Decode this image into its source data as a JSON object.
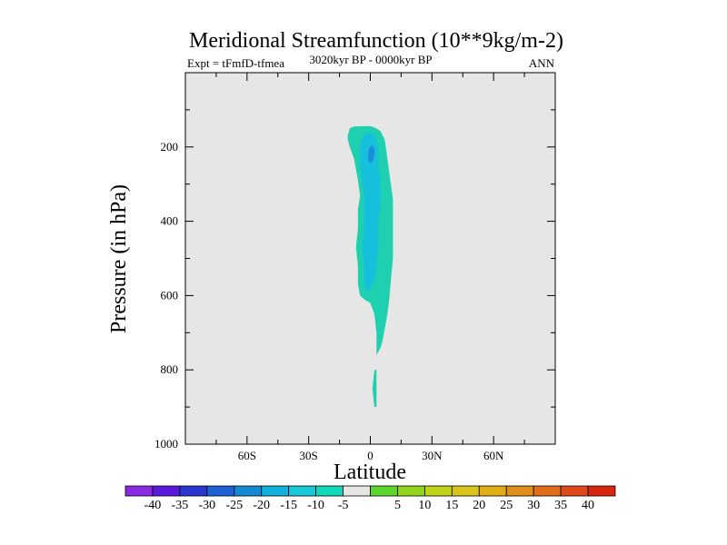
{
  "chart_data": {
    "type": "contour",
    "title": "Meridional Streamfunction (10**9kg/m-2)",
    "subtitle": "3020kyr BP - 0000kyr BP",
    "left_label": "Expt = tFmfD-tfmea",
    "right_label": "ANN",
    "xlabel": "Latitude",
    "ylabel": "Pressure (in hPa)",
    "xlim": [
      -90,
      90
    ],
    "ylim": [
      1000,
      0
    ],
    "x_ticks": [
      {
        "value": -60,
        "label": "60S"
      },
      {
        "value": -30,
        "label": "30S"
      },
      {
        "value": 0,
        "label": "0"
      },
      {
        "value": 30,
        "label": "30N"
      },
      {
        "value": 60,
        "label": "60N"
      }
    ],
    "y_ticks": [
      {
        "value": 200,
        "label": "200"
      },
      {
        "value": 400,
        "label": "400"
      },
      {
        "value": 600,
        "label": "600"
      },
      {
        "value": 800,
        "label": "800"
      },
      {
        "value": 1000,
        "label": "1000"
      }
    ],
    "background_color": "#e6e6e6",
    "colorbar": {
      "colors": [
        "#8a2be2",
        "#5a1adc",
        "#2b35cf",
        "#1f61d6",
        "#148ad6",
        "#0fb0dc",
        "#16c8d8",
        "#10d8b8",
        "#e6e6e6",
        "#5cd62b",
        "#92d41c",
        "#bfd418",
        "#d9c51a",
        "#e0ad14",
        "#e08f18",
        "#e06d1a",
        "#e04a1a",
        "#d8260f"
      ],
      "labels": [
        "-40",
        "-35",
        "-30",
        "-25",
        "-20",
        "-15",
        "-10",
        "-5",
        "5",
        "10",
        "15",
        "20",
        "25",
        "30",
        "35",
        "40"
      ]
    },
    "regions": [
      {
        "color": "#1fd0b0",
        "points": [
          [
            -11,
            170
          ],
          [
            -10,
            150
          ],
          [
            -8,
            145
          ],
          [
            -3,
            144
          ],
          [
            0,
            144
          ],
          [
            3,
            150
          ],
          [
            5,
            158
          ],
          [
            7,
            180
          ],
          [
            8,
            220
          ],
          [
            9,
            260
          ],
          [
            10,
            300
          ],
          [
            11,
            340
          ],
          [
            11,
            400
          ],
          [
            11,
            450
          ],
          [
            11,
            500
          ],
          [
            10,
            560
          ],
          [
            9,
            620
          ],
          [
            8,
            660
          ],
          [
            7,
            690
          ],
          [
            6,
            720
          ],
          [
            5,
            740
          ],
          [
            3,
            760
          ],
          [
            3,
            700
          ],
          [
            2,
            650
          ],
          [
            0,
            620
          ],
          [
            -3,
            610
          ],
          [
            -5,
            600
          ],
          [
            -6,
            570
          ],
          [
            -6,
            520
          ],
          [
            -7,
            470
          ],
          [
            -6,
            420
          ],
          [
            -6,
            370
          ],
          [
            -5,
            330
          ],
          [
            -6,
            290
          ],
          [
            -7,
            260
          ],
          [
            -8,
            230
          ],
          [
            -10,
            200
          ],
          [
            -11,
            180
          ]
        ]
      },
      {
        "color": "#1fd0b0",
        "points": [
          [
            2,
            800
          ],
          [
            3,
            800
          ],
          [
            3,
            850
          ],
          [
            3,
            900
          ],
          [
            2,
            900
          ],
          [
            1,
            850
          ]
        ]
      },
      {
        "color": "#16c0dc",
        "points": [
          [
            -5,
            190
          ],
          [
            -3,
            168
          ],
          [
            0,
            160
          ],
          [
            2,
            165
          ],
          [
            3,
            180
          ],
          [
            4,
            210
          ],
          [
            4,
            250
          ],
          [
            5,
            300
          ],
          [
            5,
            340
          ],
          [
            4,
            400
          ],
          [
            4,
            460
          ],
          [
            3,
            520
          ],
          [
            2,
            560
          ],
          [
            0,
            580
          ],
          [
            -2,
            590
          ],
          [
            -3,
            570
          ],
          [
            -3,
            520
          ],
          [
            -4,
            470
          ],
          [
            -3,
            420
          ],
          [
            -3,
            370
          ],
          [
            -3,
            330
          ],
          [
            -4,
            290
          ],
          [
            -5,
            250
          ],
          [
            -5,
            220
          ]
        ]
      },
      {
        "color": "#1b8fd9",
        "points": [
          [
            -1,
            210
          ],
          [
            0,
            198
          ],
          [
            1,
            195
          ],
          [
            2,
            205
          ],
          [
            2,
            225
          ],
          [
            1,
            240
          ],
          [
            0,
            244
          ],
          [
            -1,
            235
          ],
          [
            -1,
            222
          ]
        ]
      }
    ]
  }
}
